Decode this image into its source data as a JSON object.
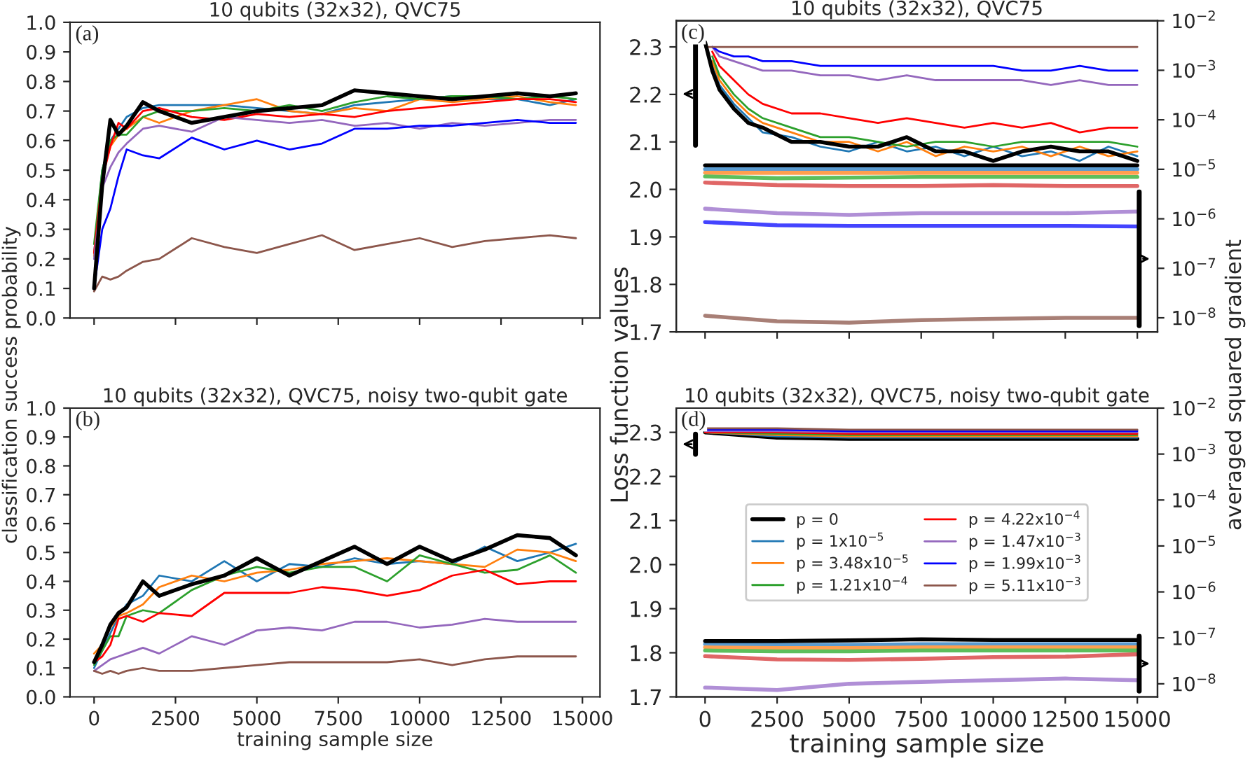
{
  "chart_data": [
    {
      "type": "line",
      "title": "10 qubits (32x32), QVC75",
      "ylabel": "classification success probability",
      "annotations": [
        "(a)"
      ],
      "x": [
        0,
        250,
        500,
        750,
        1000,
        1500,
        2000,
        3000,
        4000,
        5000,
        6000,
        7000,
        8000,
        9000,
        10000,
        11000,
        12000,
        13000,
        14000,
        14800
      ],
      "xlim": [
        -740,
        15540
      ],
      "xticks": [
        {
          "value": 0,
          "label": null
        },
        {
          "value": 2500,
          "label": null
        },
        {
          "value": 5000,
          "label": null
        },
        {
          "value": 7500,
          "label": null
        },
        {
          "value": 10000,
          "label": null
        },
        {
          "value": 12500,
          "label": null
        },
        {
          "value": 15000,
          "label": null
        }
      ],
      "ylim": [
        0.0,
        1.0
      ],
      "yticks": [
        {
          "value": 0,
          "label": "0.0"
        },
        0.1,
        0.2,
        0.3,
        0.4,
        0.5,
        0.6,
        0.7,
        0.8,
        0.9,
        {
          "value": 1,
          "label": "1.0"
        }
      ],
      "tick_labels": "y",
      "series": [
        {
          "color": "#1f77b4",
          "values": [
            0.22,
            0.5,
            0.6,
            0.64,
            0.68,
            0.71,
            0.72,
            0.72,
            0.72,
            0.71,
            0.7,
            0.69,
            0.72,
            0.73,
            0.74,
            0.75,
            0.74,
            0.74,
            0.72,
            0.74
          ]
        },
        {
          "color": "#ff7f0e",
          "values": [
            0.21,
            0.48,
            0.58,
            0.62,
            0.64,
            0.68,
            0.66,
            0.7,
            0.72,
            0.74,
            0.7,
            0.69,
            0.71,
            0.7,
            0.74,
            0.73,
            0.74,
            0.75,
            0.73,
            0.72
          ]
        },
        {
          "color": "#2ca02c",
          "values": [
            0.25,
            0.5,
            0.6,
            0.62,
            0.62,
            0.68,
            0.7,
            0.7,
            0.71,
            0.7,
            0.72,
            0.7,
            0.73,
            0.75,
            0.74,
            0.75,
            0.75,
            0.74,
            0.75,
            0.74
          ]
        },
        {
          "color": "#ff0000",
          "values": [
            0.22,
            0.47,
            0.58,
            0.66,
            0.64,
            0.7,
            0.71,
            0.68,
            0.67,
            0.69,
            0.68,
            0.69,
            0.68,
            0.7,
            0.71,
            0.72,
            0.73,
            0.74,
            0.74,
            0.73
          ]
        },
        {
          "color": "#9467bd",
          "values": [
            0.2,
            0.44,
            0.51,
            0.56,
            0.59,
            0.64,
            0.65,
            0.63,
            0.68,
            0.67,
            0.66,
            0.67,
            0.65,
            0.66,
            0.64,
            0.66,
            0.65,
            0.66,
            0.67,
            0.67
          ]
        },
        {
          "color": "#0000ff",
          "values": [
            0.1,
            0.3,
            0.37,
            0.48,
            0.57,
            0.55,
            0.54,
            0.61,
            0.57,
            0.6,
            0.57,
            0.59,
            0.64,
            0.64,
            0.65,
            0.65,
            0.66,
            0.67,
            0.66,
            0.66
          ]
        },
        {
          "color": "#8c564b",
          "values": [
            0.09,
            0.14,
            0.13,
            0.14,
            0.16,
            0.19,
            0.2,
            0.27,
            0.24,
            0.22,
            0.25,
            0.28,
            0.23,
            0.25,
            0.27,
            0.24,
            0.26,
            0.27,
            0.28,
            0.27
          ]
        },
        {
          "color": "#000000",
          "values": [
            0.1,
            0.45,
            0.67,
            0.62,
            0.65,
            0.73,
            0.7,
            0.66,
            0.68,
            0.7,
            0.71,
            0.72,
            0.77,
            0.76,
            0.75,
            0.74,
            0.75,
            0.76,
            0.75,
            0.76
          ]
        }
      ]
    },
    {
      "type": "line",
      "title": "10 qubits (32x32), QVC75, noisy two-qubit gate",
      "xlabel": "training sample size",
      "annotations": [
        "(b)"
      ],
      "x": [
        0,
        250,
        500,
        750,
        1000,
        1500,
        2000,
        3000,
        4000,
        5000,
        6000,
        7000,
        8000,
        9000,
        10000,
        11000,
        12000,
        13000,
        14000,
        14800
      ],
      "xlim": [
        -740,
        15540
      ],
      "xticks": [
        0,
        2500,
        5000,
        7500,
        10000,
        12500,
        15000
      ],
      "ylim": [
        0.0,
        1.0
      ],
      "yticks": [
        {
          "value": 0,
          "label": "0.0"
        },
        0.1,
        0.2,
        0.3,
        0.4,
        0.5,
        0.6,
        0.7,
        0.8,
        0.9,
        {
          "value": 1,
          "label": "1.0"
        }
      ],
      "series": [
        {
          "color": "#1f77b4",
          "values": [
            0.1,
            0.16,
            0.22,
            0.28,
            0.32,
            0.35,
            0.42,
            0.4,
            0.47,
            0.4,
            0.46,
            0.45,
            0.48,
            0.46,
            0.47,
            0.46,
            0.52,
            0.47,
            0.5,
            0.53
          ]
        },
        {
          "color": "#ff7f0e",
          "values": [
            0.15,
            0.18,
            0.24,
            0.28,
            0.29,
            0.32,
            0.38,
            0.42,
            0.4,
            0.43,
            0.44,
            0.46,
            0.47,
            0.48,
            0.47,
            0.46,
            0.45,
            0.51,
            0.5,
            0.47
          ]
        },
        {
          "color": "#2ca02c",
          "values": [
            0.11,
            0.16,
            0.21,
            0.21,
            0.28,
            0.3,
            0.29,
            0.37,
            0.42,
            0.45,
            0.43,
            0.45,
            0.45,
            0.4,
            0.49,
            0.46,
            0.43,
            0.44,
            0.49,
            0.43
          ]
        },
        {
          "color": "#ff0000",
          "values": [
            0.12,
            0.14,
            0.18,
            0.27,
            0.28,
            0.26,
            0.29,
            0.28,
            0.36,
            0.36,
            0.36,
            0.38,
            0.37,
            0.35,
            0.37,
            0.42,
            0.44,
            0.39,
            0.4,
            0.4
          ]
        },
        {
          "color": "#9467bd",
          "values": [
            0.09,
            0.11,
            0.13,
            0.14,
            0.15,
            0.17,
            0.15,
            0.21,
            0.18,
            0.23,
            0.24,
            0.23,
            0.26,
            0.26,
            0.24,
            0.25,
            0.27,
            0.26,
            0.26,
            0.26
          ]
        },
        {
          "color": "#8c564b",
          "values": [
            0.09,
            0.08,
            0.09,
            0.08,
            0.09,
            0.1,
            0.09,
            0.09,
            0.1,
            0.11,
            0.12,
            0.12,
            0.12,
            0.12,
            0.13,
            0.11,
            0.13,
            0.14,
            0.14,
            0.14
          ]
        },
        {
          "color": "#000000",
          "values": [
            0.12,
            0.18,
            0.25,
            0.29,
            0.31,
            0.4,
            0.35,
            0.39,
            0.42,
            0.48,
            0.42,
            0.47,
            0.52,
            0.46,
            0.52,
            0.47,
            0.51,
            0.56,
            0.55,
            0.49
          ]
        }
      ]
    },
    {
      "type": "line",
      "title": "10 qubits (32x32), QVC75",
      "ylabel": "Loss function values",
      "y2label": "averaged squared gradient",
      "annotations": [
        "(c)"
      ],
      "x": [
        0,
        250,
        500,
        1000,
        1500,
        2000,
        3000,
        4000,
        5000,
        6000,
        7000,
        8000,
        9000,
        10000,
        11000,
        12000,
        13000,
        14000,
        15000
      ],
      "xlim": [
        -1000,
        15700
      ],
      "xticks": [
        {
          "value": 0,
          "label": null
        },
        {
          "value": 2500,
          "label": null
        },
        {
          "value": 5000,
          "label": null
        },
        {
          "value": 7500,
          "label": null
        },
        {
          "value": 10000,
          "label": null
        },
        {
          "value": 12500,
          "label": null
        },
        {
          "value": 15000,
          "label": null
        }
      ],
      "ylim": [
        1.7,
        2.355
      ],
      "yticks": [
        1.7,
        1.8,
        1.9,
        {
          "value": 2,
          "label": "2.0"
        },
        2.1,
        2.2,
        2.3
      ],
      "y2lim": [
        5.2e-09,
        0.01
      ],
      "y2ticks": [
        {
          "value": 1e-08,
          "label": "10$^{−8}$"
        },
        {
          "value": 1e-07,
          "label": "10$^{−7}$"
        },
        {
          "value": 1e-06,
          "label": "10$^{−6}$"
        },
        {
          "value": 1e-05,
          "label": "10$^{−5}$"
        },
        {
          "value": 0.0001,
          "label": "10$^{−4}$"
        },
        {
          "value": 0.001,
          "label": "10$^{−3}$"
        },
        {
          "value": 0.01,
          "label": "10$^{−2}$"
        }
      ],
      "log": "y2",
      "tick_labels": "y",
      "series": [
        {
          "color": "#1f77b4",
          "values": [
            null,
            2.26,
            2.22,
            2.18,
            2.15,
            2.12,
            2.11,
            2.09,
            2.08,
            2.1,
            2.08,
            2.09,
            2.07,
            2.09,
            2.07,
            2.08,
            2.06,
            2.09,
            2.07
          ]
        },
        {
          "color": "#ff7f0e",
          "values": [
            null,
            2.27,
            2.23,
            2.19,
            2.16,
            2.14,
            2.12,
            2.1,
            2.1,
            2.08,
            2.1,
            2.07,
            2.09,
            2.08,
            2.09,
            2.07,
            2.09,
            2.07,
            2.08
          ]
        },
        {
          "color": "#2ca02c",
          "values": [
            null,
            2.28,
            2.24,
            2.2,
            2.17,
            2.15,
            2.13,
            2.11,
            2.11,
            2.1,
            2.09,
            2.1,
            2.1,
            2.09,
            2.1,
            2.1,
            2.1,
            2.1,
            2.09
          ]
        },
        {
          "color": "#ff0000",
          "values": [
            null,
            2.29,
            2.26,
            2.23,
            2.2,
            2.18,
            2.16,
            2.16,
            2.15,
            2.14,
            2.15,
            2.14,
            2.13,
            2.14,
            2.13,
            2.14,
            2.12,
            2.13,
            2.13
          ]
        },
        {
          "color": "#9467bd",
          "values": [
            null,
            2.3,
            2.28,
            2.27,
            2.26,
            2.25,
            2.25,
            2.24,
            2.24,
            2.23,
            2.24,
            2.23,
            2.23,
            2.23,
            2.23,
            2.22,
            2.23,
            2.22,
            2.22
          ]
        },
        {
          "color": "#0000ff",
          "values": [
            null,
            2.3,
            2.29,
            2.28,
            2.28,
            2.27,
            2.27,
            2.26,
            2.26,
            2.26,
            2.26,
            2.26,
            2.26,
            2.26,
            2.25,
            2.25,
            2.26,
            2.25,
            2.25
          ]
        },
        {
          "color": "#8c564b",
          "values": [
            2.3,
            2.3,
            2.3,
            2.3,
            2.3,
            2.3,
            2.3,
            2.3,
            2.3,
            2.3,
            2.3,
            2.3,
            2.3,
            2.3,
            2.3,
            2.3,
            2.3,
            2.3,
            2.3
          ]
        },
        {
          "color": "#000000",
          "values": [
            2.31,
            2.25,
            2.21,
            2.17,
            2.14,
            2.13,
            2.1,
            2.1,
            2.09,
            2.09,
            2.11,
            2.08,
            2.08,
            2.06,
            2.08,
            2.09,
            2.08,
            2.08,
            2.06
          ]
        },
        {
          "axis": "y2",
          "color": "#5a9bd0",
          "x": [
            0,
            2500,
            5000,
            7500,
            10000,
            12500,
            15000
          ],
          "values": [
            1e-05,
            1e-05,
            1e-05,
            1e-05,
            1e-05,
            1e-05,
            1e-05
          ]
        },
        {
          "axis": "y2",
          "color": "#ff9f4f",
          "x": [
            0,
            2500,
            5000,
            7500,
            10000,
            12500,
            15000
          ],
          "values": [
            8.5e-06,
            8.5e-06,
            8.5e-06,
            8.5e-06,
            8.5e-06,
            8.5e-06,
            8.5e-06
          ]
        },
        {
          "axis": "y2",
          "color": "#5cbf5c",
          "x": [
            0,
            2500,
            5000,
            7500,
            10000,
            12500,
            15000
          ],
          "values": [
            7.2e-06,
            6.6e-06,
            6.8e-06,
            7e-06,
            7e-06,
            7e-06,
            7e-06
          ]
        },
        {
          "axis": "y2",
          "color": "#e06666",
          "x": [
            0,
            2500,
            5000,
            7500,
            10000,
            12500,
            15000
          ],
          "values": [
            5.4e-06,
            4.8e-06,
            4.6e-06,
            4.6e-06,
            4.8e-06,
            4.6e-06,
            4.6e-06
          ]
        },
        {
          "axis": "y2",
          "color": "#b08fd6",
          "x": [
            0,
            2500,
            5000,
            7500,
            10000,
            12500,
            15000
          ],
          "values": [
            1.6e-06,
            1.3e-06,
            1.2e-06,
            1.3e-06,
            1.3e-06,
            1.3e-06,
            1.4e-06
          ]
        },
        {
          "axis": "y2",
          "color": "#4444ff",
          "x": [
            0,
            2500,
            5000,
            7500,
            10000,
            12500,
            15000
          ],
          "values": [
            8.6e-07,
            7.4e-07,
            7.2e-07,
            7.2e-07,
            7.2e-07,
            7.2e-07,
            7e-07
          ]
        },
        {
          "axis": "y2",
          "color": "#a87f76",
          "x": [
            0,
            2500,
            5000,
            7500,
            10000,
            12500,
            15000
          ],
          "values": [
            1.1e-08,
            8.5e-09,
            8e-09,
            9e-09,
            9.5e-09,
            1e-08,
            1e-08
          ]
        },
        {
          "axis": "y2",
          "color": "#000000",
          "x": [
            0,
            2500,
            5000,
            7500,
            10000,
            12500,
            15000
          ],
          "values": [
            1.2e-05,
            1.2e-05,
            1.2e-05,
            1.2e-05,
            1.2e-05,
            1.2e-05,
            1.2e-05
          ]
        }
      ]
    },
    {
      "type": "line",
      "title": "10 qubits (32x32), QVC75, noisy two-qubit gate",
      "xlabel": "training sample size",
      "annotations": [
        "(d)"
      ],
      "x": [
        0,
        2500,
        5000,
        7500,
        10000,
        12500,
        15000
      ],
      "xlim": [
        -1000,
        15700
      ],
      "xticks": [
        0,
        2500,
        5000,
        7500,
        10000,
        12500,
        15000
      ],
      "ylim": [
        1.7,
        2.355
      ],
      "yticks": [
        1.7,
        1.8,
        1.9,
        {
          "value": 2,
          "label": "2.0"
        },
        2.1,
        2.2,
        2.3
      ],
      "y2lim": [
        5.2e-09,
        0.01
      ],
      "y2ticks": [
        {
          "value": 1e-08,
          "label": "10$^{−8}$"
        },
        {
          "value": 1e-07,
          "label": "10$^{−7}$"
        },
        {
          "value": 1e-06,
          "label": "10$^{−6}$"
        },
        {
          "value": 1e-05,
          "label": "10$^{−5}$"
        },
        {
          "value": 0.0001,
          "label": "10$^{−4}$"
        },
        {
          "value": 0.001,
          "label": "10$^{−3}$"
        },
        {
          "value": 0.01,
          "label": "10$^{−2}$"
        }
      ],
      "log": "y2",
      "legend": "center",
      "series": [
        {
          "name": "p = 0",
          "color": "#000000",
          "values": [
            2.3,
            2.288,
            2.285,
            2.285,
            2.285,
            2.285,
            2.285
          ]
        },
        {
          "name": "p = 1x10$^{−5}$",
          "color": "#1f77b4",
          "values": [
            2.3,
            2.291,
            2.288,
            2.288,
            2.288,
            2.288,
            2.288
          ]
        },
        {
          "name": "p = 3.48x10$^{−5}$",
          "color": "#ff7f0e",
          "values": [
            2.3,
            2.294,
            2.291,
            2.291,
            2.291,
            2.291,
            2.291
          ]
        },
        {
          "name": "p = 1.21x10$^{−4}$",
          "color": "#2ca02c",
          "values": [
            2.3,
            2.297,
            2.294,
            2.294,
            2.294,
            2.294,
            2.294
          ]
        },
        {
          "name": "p = 4.22x10$^{−4}$",
          "color": "#ff0000",
          "values": [
            2.3,
            2.3,
            2.297,
            2.297,
            2.297,
            2.297,
            2.297
          ]
        },
        {
          "name": "p = 1.47x10$^{−3}$",
          "color": "#9467bd",
          "values": [
            2.303,
            2.303,
            2.3,
            2.3,
            2.3,
            2.3,
            2.3
          ]
        },
        {
          "name": "p = 1.99x10$^{−3}$",
          "color": "#0000ff",
          "values": [
            2.306,
            2.306,
            2.303,
            2.303,
            2.303,
            2.303,
            2.303
          ]
        },
        {
          "name": "p = 5.11x10$^{−3}$",
          "color": "#8c564b",
          "values": [
            2.309,
            2.309,
            2.306,
            2.306,
            2.306,
            2.306,
            2.306
          ]
        },
        {
          "axis": "y2",
          "color": "#5a9bd0",
          "values": [
            7.3e-08,
            7e-08,
            7e-08,
            7.3e-08,
            7.3e-08,
            7.3e-08,
            7.3e-08
          ]
        },
        {
          "axis": "y2",
          "color": "#ff9f4f",
          "values": [
            6.2e-08,
            6e-08,
            6e-08,
            6.2e-08,
            6.2e-08,
            6.2e-08,
            6.2e-08
          ]
        },
        {
          "axis": "y2",
          "color": "#5cbf5c",
          "values": [
            5.3e-08,
            5.1e-08,
            5.1e-08,
            5.3e-08,
            5.3e-08,
            5.3e-08,
            5.3e-08
          ]
        },
        {
          "axis": "y2",
          "color": "#e06666",
          "values": [
            4e-08,
            3.4e-08,
            3.3e-08,
            3.5e-08,
            3.8e-08,
            3.9e-08,
            4.4e-08
          ]
        },
        {
          "axis": "y2",
          "color": "#b08fd6",
          "values": [
            8.3e-09,
            7.3e-09,
            1e-08,
            1.1e-08,
            1.2e-08,
            1.3e-08,
            1.2e-08
          ]
        },
        {
          "axis": "y2",
          "color": "#000000",
          "values": [
            8.5e-08,
            8.5e-08,
            8.8e-08,
            9.3e-08,
            9e-08,
            9e-08,
            9e-08
          ]
        }
      ]
    }
  ]
}
